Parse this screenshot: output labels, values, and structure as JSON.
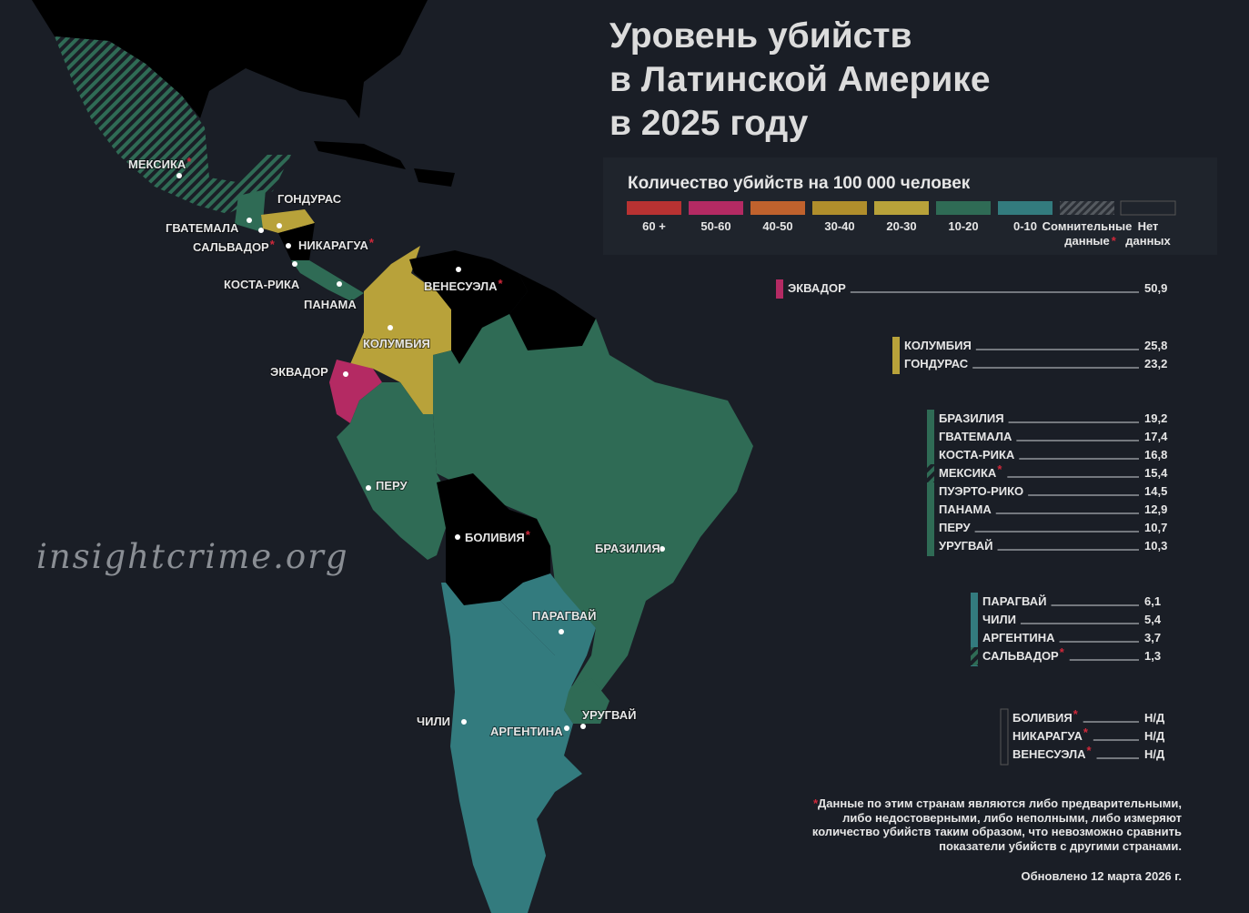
{
  "title": [
    "Уровень убийств",
    "в Латинской Америке",
    "в 2025 году"
  ],
  "legend": {
    "title": "Количество убийств на 100 000 человек",
    "items": [
      [
        "60 +"
      ],
      [
        "50-60"
      ],
      [
        "40-50"
      ],
      [
        "30-40"
      ],
      [
        "20-30"
      ],
      [
        "10-20"
      ],
      [
        "0-10"
      ],
      [
        "Сомнительные",
        "данные"
      ],
      [
        "Нет",
        "данных"
      ]
    ]
  },
  "note_mark": "*",
  "rankings": [
    {
      "rows": [
        {
          "name": "ЭКВАДОР",
          "value": "50,9"
        }
      ]
    },
    {
      "rows": [
        {
          "name": "КОЛУМБИЯ",
          "value": "25,8"
        },
        {
          "name": "ГОНДУРАС",
          "value": "23,2"
        }
      ]
    },
    {
      "rows": [
        {
          "name": "БРАЗИЛИЯ",
          "value": "19,2"
        },
        {
          "name": "ГВАТЕМАЛА",
          "value": "17,4"
        },
        {
          "name": "КОСТА-РИКА",
          "value": "16,8"
        },
        {
          "name": "МЕКСИКА",
          "value": "15,4",
          "flagged": true
        },
        {
          "name": "ПУЭРТО-РИКО",
          "value": "14,5"
        },
        {
          "name": "ПАНАМА",
          "value": "12,9"
        },
        {
          "name": "ПЕРУ",
          "value": "10,7"
        },
        {
          "name": "УРУГВАЙ",
          "value": "10,3"
        }
      ]
    },
    {
      "rows": [
        {
          "name": "ПАРАГВАЙ",
          "value": "6,1"
        },
        {
          "name": "ЧИЛИ",
          "value": "5,4"
        },
        {
          "name": "АРГЕНТИНА",
          "value": "3,7"
        },
        {
          "name": "САЛЬВАДОР",
          "value": "1,3",
          "flagged": true
        }
      ]
    },
    {
      "rows": [
        {
          "name": "БОЛИВИЯ",
          "value": "Н/Д",
          "flagged": true
        },
        {
          "name": "НИКАРАГУА",
          "value": "Н/Д",
          "flagged": true
        },
        {
          "name": "ВЕНЕСУЭЛА",
          "value": "Н/Д",
          "flagged": true
        }
      ]
    }
  ],
  "map_labels": [
    {
      "label": "МЕКСИКА",
      "flagged": true
    },
    {
      "label": "ГОНДУРАС"
    },
    {
      "label": "ГВАТЕМАЛА"
    },
    {
      "label": "САЛЬВАДОР",
      "flagged": true
    },
    {
      "label": "НИКАРАГУА",
      "flagged": true
    },
    {
      "label": "КОСТА-РИКА"
    },
    {
      "label": "ПАНАМА"
    },
    {
      "label": "ВЕНЕСУЭЛА",
      "flagged": true
    },
    {
      "label": "КОЛУМБИЯ"
    },
    {
      "label": "ЭКВАДОР"
    },
    {
      "label": "ПЕРУ"
    },
    {
      "label": "БОЛИВИЯ",
      "flagged": true
    },
    {
      "label": "БРАЗИЛИЯ"
    },
    {
      "label": "ПАРАГВАЙ"
    },
    {
      "label": "ЧИЛИ"
    },
    {
      "label": "АРГЕНТИНА"
    },
    {
      "label": "УРУГВАЙ"
    }
  ],
  "footnote": [
    "Данные по этим странам являются либо предварительными,",
    "либо недостоверными, либо неполными, либо измеряют",
    "количество убийств таким образом, что невозможно сравнить",
    "показатели убийств с другими странами."
  ],
  "updated": "Обновлено 12 марта 2026 г.",
  "watermark": "insightcrime.org"
}
